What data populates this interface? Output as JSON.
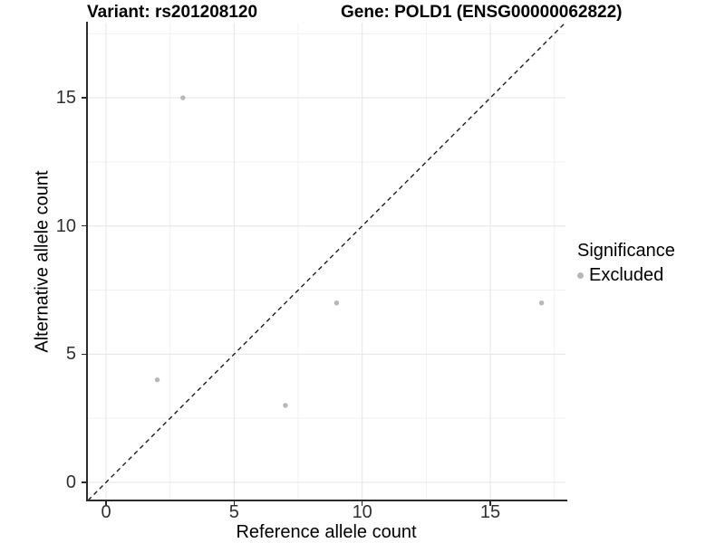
{
  "title": {
    "variant": "Variant: rs201208120",
    "gene": "Gene: POLD1 (ENSG00000062822)"
  },
  "axes": {
    "x_label": "Reference allele count",
    "y_label": "Alternative allele count"
  },
  "legend": {
    "title": "Significance",
    "items": [
      {
        "label": "Excluded",
        "color": "#b7b7b7"
      }
    ]
  },
  "colors": {
    "point": "#b7b7b7",
    "grid_major": "#e4e4e4",
    "grid_minor": "#f1f1f1",
    "axis": "#2b2b2b",
    "dashed_line": "#1c1c1c",
    "tick_text": "#303030"
  },
  "chart_data": {
    "type": "scatter",
    "title_left": "Variant: rs201208120",
    "title_right": "Gene: POLD1 (ENSG00000062822)",
    "xlabel": "Reference allele count",
    "ylabel": "Alternative allele count",
    "x_ticks": [
      0,
      5,
      10,
      15
    ],
    "y_ticks": [
      0,
      5,
      10,
      15
    ],
    "x_minor": [
      2.5,
      7.5,
      12.5,
      17.5
    ],
    "y_minor": [
      2.5,
      7.5,
      12.5,
      17.5
    ],
    "xlim": [
      -0.7,
      17.9
    ],
    "ylim": [
      -0.7,
      17.9
    ],
    "grid": true,
    "legend_position": "right",
    "series": [
      {
        "name": "Excluded",
        "color": "#b7b7b7",
        "points": [
          {
            "x": 3,
            "y": 15
          },
          {
            "x": 2,
            "y": 4
          },
          {
            "x": 7,
            "y": 3
          },
          {
            "x": 9,
            "y": 7
          },
          {
            "x": 17,
            "y": 7
          }
        ]
      }
    ],
    "reference_line": {
      "type": "identity",
      "style": "dashed",
      "equation": "y = x"
    }
  }
}
